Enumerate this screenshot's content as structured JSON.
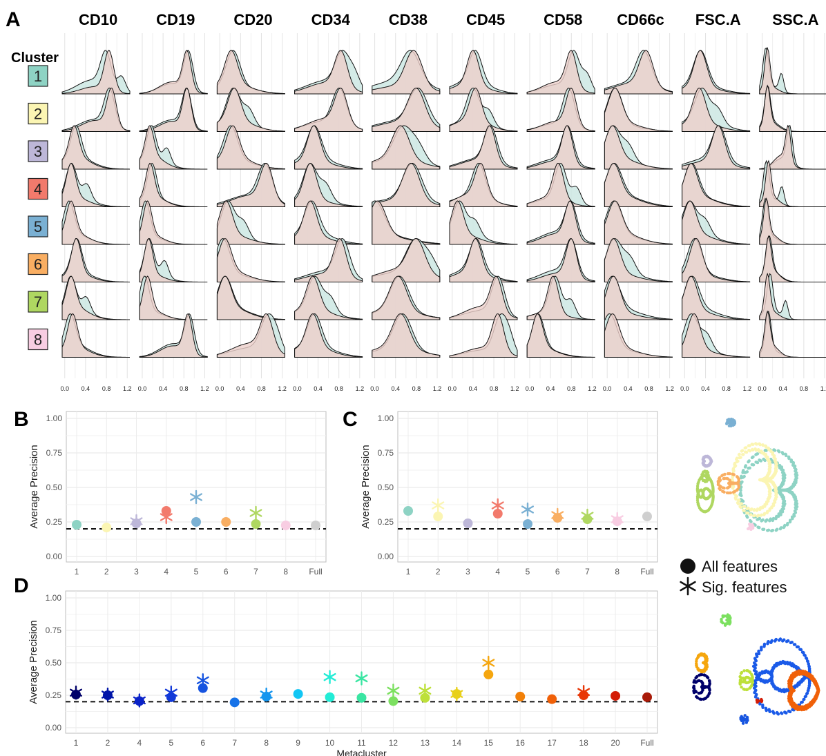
{
  "panels": {
    "A": {
      "letter": "A",
      "cluster_title": "Cluster"
    },
    "B": {
      "letter": "B"
    },
    "C": {
      "letter": "C"
    },
    "D": {
      "letter": "D"
    }
  },
  "legend": {
    "all_label": "All features",
    "sig_label": "Sig. features"
  },
  "colors": {
    "cluster": [
      "#8ed3c4",
      "#fbf5b3",
      "#bdb7d8",
      "#f27a6c",
      "#7ab0d3",
      "#f9ae62",
      "#afd761",
      "#f8cde2"
    ],
    "full": "#cfcfcf",
    "density_teal": "#cde8e3",
    "density_pink": "#eccfca",
    "density_overlap": "#d8cbc8"
  },
  "chart_data": [
    {
      "panel": "A",
      "type": "area",
      "markers": [
        "CD10",
        "CD19",
        "CD20",
        "CD34",
        "CD38",
        "CD45",
        "CD58",
        "CD66c",
        "FSC.A",
        "SSC.A"
      ],
      "clusters": [
        "1",
        "2",
        "3",
        "4",
        "5",
        "6",
        "7",
        "8"
      ],
      "x_ticks": [
        "0.0",
        "0.4",
        "0.8",
        "1.2"
      ],
      "xlim": [
        -0.05,
        1.25
      ]
    },
    {
      "panel": "B",
      "type": "scatter",
      "ylabel": "Average Precision",
      "xlabel": "",
      "categories": [
        "1",
        "2",
        "3",
        "4",
        "5",
        "6",
        "7",
        "8",
        "Full"
      ],
      "y_ticks": [
        "0.00",
        "0.25",
        "0.50",
        "0.75",
        "1.00"
      ],
      "ylim": [
        0,
        1
      ],
      "baseline": 0.2,
      "series": [
        {
          "name": "All features",
          "values": [
            0.23,
            0.21,
            0.24,
            0.33,
            0.25,
            0.25,
            0.235,
            0.225,
            0.225
          ]
        },
        {
          "name": "Sig. features",
          "values": [
            null,
            null,
            0.255,
            0.285,
            0.43,
            null,
            0.315,
            null,
            null
          ]
        }
      ]
    },
    {
      "panel": "C",
      "type": "scatter",
      "ylabel": "Average Precision",
      "xlabel": "",
      "categories": [
        "1",
        "2",
        "3",
        "4",
        "5",
        "6",
        "7",
        "8",
        "Full"
      ],
      "y_ticks": [
        "0.00",
        "0.25",
        "0.50",
        "0.75",
        "1.00"
      ],
      "ylim": [
        0,
        1
      ],
      "baseline": 0.2,
      "series": [
        {
          "name": "All features",
          "values": [
            0.33,
            0.29,
            0.24,
            0.31,
            0.235,
            0.28,
            0.27,
            0.255,
            0.29
          ]
        },
        {
          "name": "Sig. features",
          "values": [
            null,
            0.37,
            null,
            0.37,
            0.34,
            0.3,
            0.295,
            0.27,
            null
          ]
        }
      ]
    },
    {
      "panel": "D",
      "type": "scatter",
      "ylabel": "Average Precision",
      "xlabel": "Metacluster",
      "categories": [
        "1",
        "2",
        "4",
        "5",
        "6",
        "7",
        "8",
        "9",
        "10",
        "11",
        "12",
        "13",
        "14",
        "15",
        "16",
        "17",
        "18",
        "20",
        "Full"
      ],
      "point_colors": [
        "#00006a",
        "#0015a8",
        "#0a22c8",
        "#1239d8",
        "#1654e0",
        "#1572e8",
        "#1595ee",
        "#12c6f4",
        "#22ecd6",
        "#3ae5a2",
        "#7ce060",
        "#bde03a",
        "#e8d01a",
        "#f5a60e",
        "#f28008",
        "#f06008",
        "#e83606",
        "#d31c06",
        "#a81a08"
      ],
      "y_ticks": [
        "0.00",
        "0.25",
        "0.50",
        "0.75",
        "1.00"
      ],
      "ylim": [
        0,
        1
      ],
      "baseline": 0.2,
      "series": [
        {
          "name": "All features",
          "values": [
            0.255,
            0.25,
            0.205,
            0.235,
            0.305,
            0.195,
            0.24,
            0.26,
            0.235,
            0.23,
            0.205,
            0.23,
            0.26,
            0.41,
            0.24,
            0.22,
            0.25,
            0.245,
            0.235
          ]
        },
        {
          "name": "Sig. features",
          "values": [
            0.27,
            0.255,
            0.21,
            0.27,
            0.365,
            null,
            0.255,
            null,
            0.39,
            0.38,
            0.285,
            0.285,
            0.26,
            0.5,
            null,
            null,
            0.275,
            null,
            null
          ]
        }
      ]
    }
  ]
}
